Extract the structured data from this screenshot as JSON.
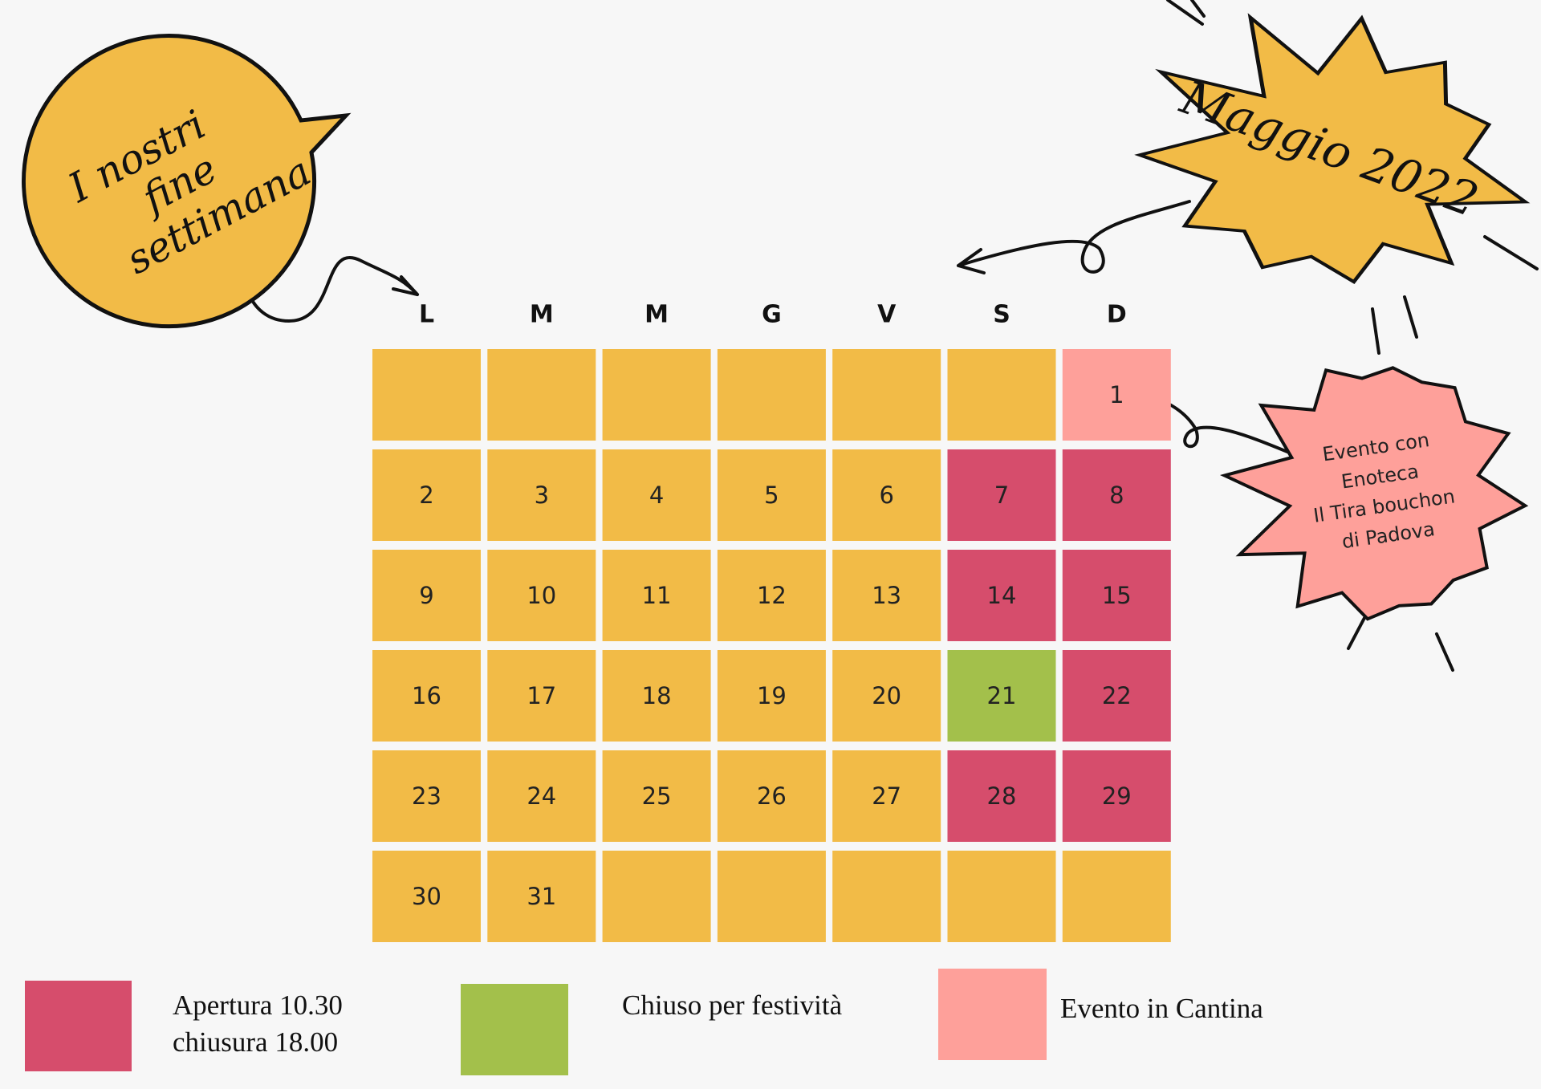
{
  "bubble": {
    "lines": [
      "I nostri",
      "fine",
      "settimana"
    ],
    "color": "#f2bb47"
  },
  "title": {
    "text": "Maggio 2022",
    "color": "#f2bb47"
  },
  "event_note": {
    "lines": [
      "Evento con",
      "Enoteca",
      "Il  Tira bouchon",
      "di Padova"
    ],
    "color": "#fea09a"
  },
  "weekdays": [
    "L",
    "M",
    "M",
    "G",
    "V",
    "S",
    "D"
  ],
  "weeks": [
    [
      {
        "color": "#f2bb47"
      },
      {
        "color": "#f2bb47"
      },
      {
        "color": "#f2bb47"
      },
      {
        "color": "#f2bb47"
      },
      {
        "color": "#f2bb47"
      },
      {
        "color": "#f2bb47"
      },
      {
        "day": 1,
        "color": "#fea09a"
      }
    ],
    [
      {
        "day": 2,
        "color": "#f2bb47"
      },
      {
        "day": 3,
        "color": "#f2bb47"
      },
      {
        "day": 4,
        "color": "#f2bb47"
      },
      {
        "day": 5,
        "color": "#f2bb47"
      },
      {
        "day": 6,
        "color": "#f2bb47"
      },
      {
        "day": 7,
        "color": "#d64d6c"
      },
      {
        "day": 8,
        "color": "#d64d6c"
      }
    ],
    [
      {
        "day": 9,
        "color": "#f2bb47"
      },
      {
        "day": 10,
        "color": "#f2bb47"
      },
      {
        "day": 11,
        "color": "#f2bb47"
      },
      {
        "day": 12,
        "color": "#f2bb47"
      },
      {
        "day": 13,
        "color": "#f2bb47"
      },
      {
        "day": 14,
        "color": "#d64d6c"
      },
      {
        "day": 15,
        "color": "#d64d6c"
      }
    ],
    [
      {
        "day": 16,
        "color": "#f2bb47"
      },
      {
        "day": 17,
        "color": "#f2bb47"
      },
      {
        "day": 18,
        "color": "#f2bb47"
      },
      {
        "day": 19,
        "color": "#f2bb47"
      },
      {
        "day": 20,
        "color": "#f2bb47"
      },
      {
        "day": 21,
        "color": "#a3c04b"
      },
      {
        "day": 22,
        "color": "#d64d6c"
      }
    ],
    [
      {
        "day": 23,
        "color": "#f2bb47"
      },
      {
        "day": 24,
        "color": "#f2bb47"
      },
      {
        "day": 25,
        "color": "#f2bb47"
      },
      {
        "day": 26,
        "color": "#f2bb47"
      },
      {
        "day": 27,
        "color": "#f2bb47"
      },
      {
        "day": 28,
        "color": "#d64d6c"
      },
      {
        "day": 29,
        "color": "#d64d6c"
      }
    ],
    [
      {
        "day": 30,
        "color": "#f2bb47"
      },
      {
        "day": 31,
        "color": "#f2bb47"
      },
      {
        "color": "#f2bb47"
      },
      {
        "color": "#f2bb47"
      },
      {
        "color": "#f2bb47"
      },
      {
        "color": "#f2bb47"
      },
      {
        "color": "#f2bb47"
      }
    ]
  ],
  "legend": [
    {
      "lines": [
        "Apertura 10.30",
        "chiusura 18.00"
      ],
      "color": "#d64d6c"
    },
    {
      "lines": [
        "Chiuso per  festività"
      ],
      "color": "#a3c04b"
    },
    {
      "lines": [
        "Evento in Cantina"
      ],
      "color": "#fea09a"
    }
  ]
}
